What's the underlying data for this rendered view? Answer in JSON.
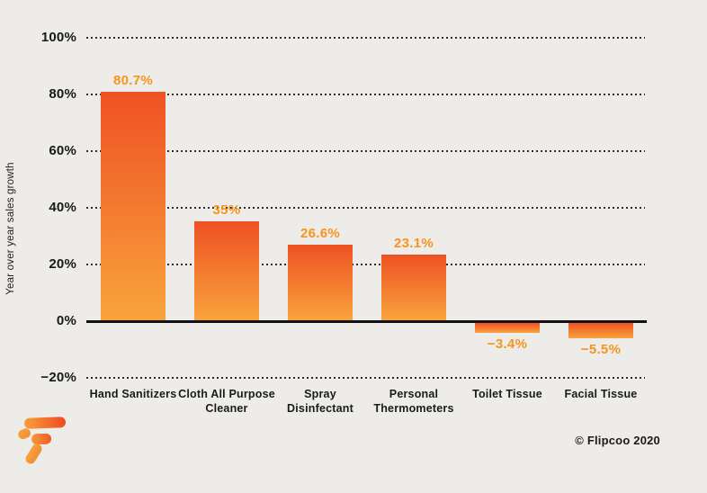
{
  "page": {
    "background": "#edece9",
    "copyright": "© Flipcoo 2020"
  },
  "chart_data": {
    "type": "bar",
    "title": "",
    "ylabel": "Year over year sales growth",
    "categories": [
      "Hand Sanitizers",
      "Cloth All Purpose\nCleaner",
      "Spray\nDisinfectant",
      "Personal\nThermometers",
      "Toilet Tissue",
      "Facial Tissue"
    ],
    "values": [
      80.7,
      35,
      26.6,
      23.1,
      -3.4,
      -5.5
    ],
    "value_labels": [
      "80.7%",
      "35%",
      "26.6%",
      "23.1%",
      "−3.4%",
      "−5.5%"
    ],
    "yticks": [
      100,
      80,
      60,
      40,
      20,
      0,
      -20
    ],
    "ytick_labels": [
      "100%",
      "80%",
      "60%",
      "40%",
      "20%",
      "0%",
      "−20%"
    ],
    "ylim": [
      -20,
      100
    ],
    "grid": "horizontal-dotted",
    "colors": {
      "bar_top": "#ee5123",
      "bar_bottom": "#f9a33c",
      "value_label": "#f7941e",
      "axis_text": "#191919",
      "gridline": "#2e2b28",
      "zero_line": "#121212"
    }
  }
}
